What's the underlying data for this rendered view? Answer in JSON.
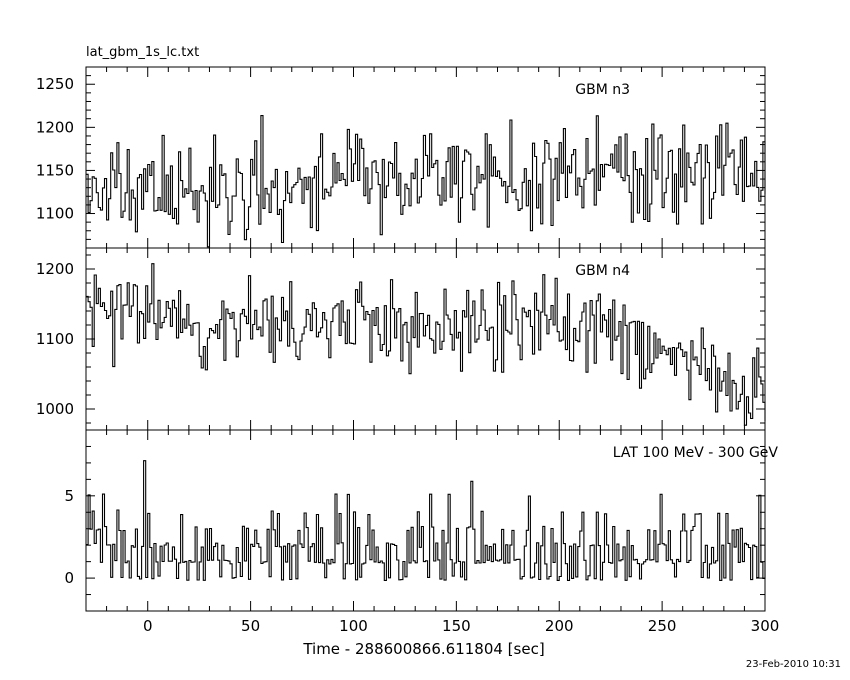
{
  "header": {
    "file_title": "lat_gbm_1s_lc.txt",
    "timestamp": "23-Feb-2010 10:31"
  },
  "colors": {
    "ink": "#000000",
    "background": "#ffffff"
  },
  "chart_data": [
    {
      "type": "line",
      "panel": "top",
      "title": "GBM n3",
      "xlim": [
        -30,
        300
      ],
      "ylim": [
        1060,
        1270
      ],
      "yticks_major": [
        1100,
        1150,
        1200,
        1250
      ],
      "yticks_minor_step": 10,
      "series": [
        {
          "name": "GBM n3",
          "baseline": [
            [
              -30,
              1125
            ],
            [
              50,
              1128
            ],
            [
              100,
              1140
            ],
            [
              150,
              1140
            ],
            [
              200,
              1145
            ],
            [
              250,
              1150
            ],
            [
              300,
              1150
            ]
          ],
          "spread": 35,
          "seed": 11
        }
      ]
    },
    {
      "type": "line",
      "panel": "middle",
      "title": "GBM n4",
      "xlim": [
        -30,
        300
      ],
      "ylim": [
        970,
        1230
      ],
      "yticks_major": [
        1000,
        1100,
        1200
      ],
      "yticks_minor_step": 20,
      "series": [
        {
          "name": "GBM n4",
          "baseline": [
            [
              -30,
              1135
            ],
            [
              0,
              1140
            ],
            [
              50,
              1115
            ],
            [
              100,
              1130
            ],
            [
              150,
              1120
            ],
            [
              200,
              1120
            ],
            [
              230,
              1110
            ],
            [
              260,
              1060
            ],
            [
              300,
              1020
            ]
          ],
          "spread": 38,
          "seed": 23
        }
      ]
    },
    {
      "type": "line",
      "panel": "bottom",
      "title": "LAT 100 MeV - 300 GeV",
      "xlim": [
        -30,
        300
      ],
      "ylim": [
        -2,
        9
      ],
      "yticks_major": [
        0,
        5
      ],
      "yticks_minor_step": 1,
      "series": [
        {
          "name": "LAT 100 MeV - 300 GeV",
          "counts": true,
          "mean": 1.2,
          "seed": 37
        }
      ],
      "xticks_major": [
        0,
        50,
        100,
        150,
        200,
        250,
        300
      ],
      "xticks_minor_step": 10,
      "xlabel": "Time - 288600866.611804 [sec]"
    }
  ]
}
